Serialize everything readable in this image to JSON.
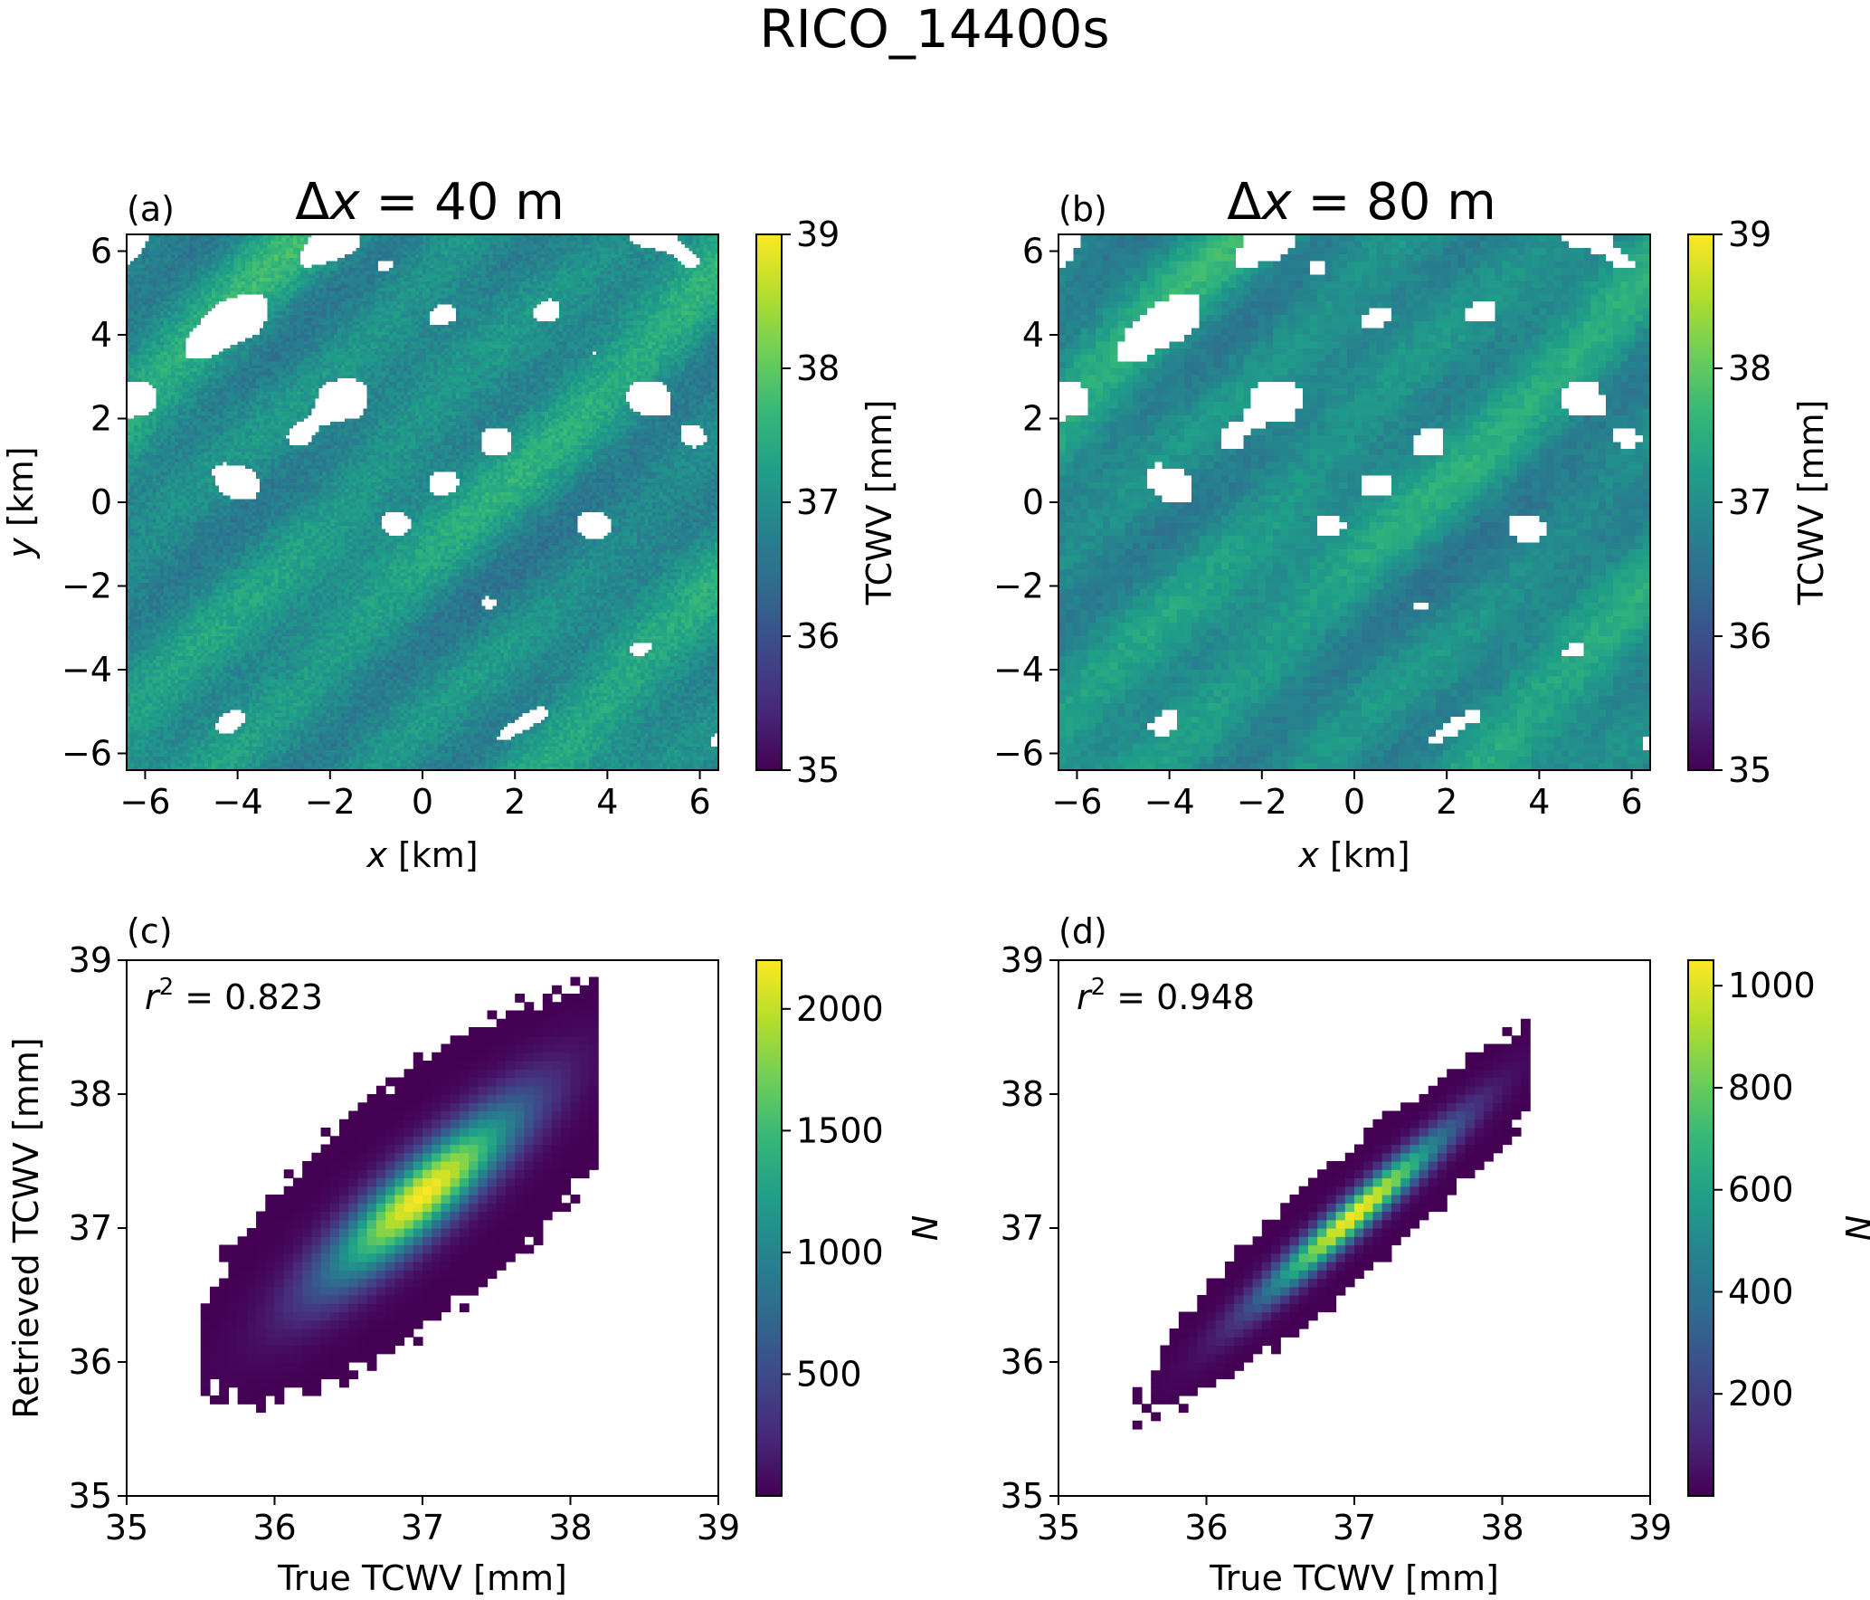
{
  "figure": {
    "title": "RICO_14400s"
  },
  "colormap": [
    "#440154",
    "#482878",
    "#3e4989",
    "#31688e",
    "#26828e",
    "#1f9e89",
    "#35b779",
    "#6ece58",
    "#b5de2b",
    "#fde725"
  ],
  "chart_data": [
    {
      "panel": "(a)",
      "type": "heatmap",
      "title": "Δx = 40 m",
      "title_parts": {
        "delta": "Δ",
        "var": "x",
        "rest": " = 40 m"
      },
      "xlabel": {
        "var": "x",
        "unit": " [km]"
      },
      "ylabel": {
        "var": "y",
        "unit": " [km]"
      },
      "xlim": [
        -6.4,
        6.4
      ],
      "ylim": [
        -6.4,
        6.4
      ],
      "xticks": [
        -6,
        -4,
        -2,
        0,
        2,
        4,
        6
      ],
      "yticks": [
        -6,
        -4,
        -2,
        0,
        2,
        4,
        6
      ],
      "colorbar": {
        "label": "TCWV [mm]",
        "range": [
          35,
          39
        ],
        "ticks": [
          35,
          36,
          37,
          38,
          39
        ]
      },
      "field_mean": 37.0,
      "cloud_mask_color": "#ffffff",
      "grid": false
    },
    {
      "panel": "(b)",
      "type": "heatmap",
      "title": "Δx = 80 m",
      "title_parts": {
        "delta": "Δ",
        "var": "x",
        "rest": " = 80 m"
      },
      "xlabel": {
        "var": "x",
        "unit": " [km]"
      },
      "ylabel": {
        "var": "",
        "unit": ""
      },
      "xlim": [
        -6.4,
        6.4
      ],
      "ylim": [
        -6.4,
        6.4
      ],
      "xticks": [
        -6,
        -4,
        -2,
        0,
        2,
        4,
        6
      ],
      "yticks": [
        -6,
        -4,
        -2,
        0,
        2,
        4,
        6
      ],
      "colorbar": {
        "label": "TCWV [mm]",
        "range": [
          35,
          39
        ],
        "ticks": [
          35,
          36,
          37,
          38,
          39
        ]
      },
      "field_mean": 37.0,
      "cloud_mask_color": "#ffffff",
      "grid": false
    },
    {
      "panel": "(c)",
      "type": "heatmap",
      "subtype": "2d-histogram",
      "annotation": {
        "var": "r",
        "sup": "2",
        "rest": " = 0.823"
      },
      "r2": 0.823,
      "xlabel": "True TCWV [mm]",
      "ylabel": "Retrieved TCWV [mm]",
      "xlim": [
        35,
        39
      ],
      "ylim": [
        35,
        39
      ],
      "xticks": [
        35,
        36,
        37,
        38,
        39
      ],
      "yticks": [
        35,
        36,
        37,
        38,
        39
      ],
      "true_range": [
        35.5,
        38.2
      ],
      "peak": [
        37.0,
        37.25
      ],
      "spread": {
        "along": 0.62,
        "across": 0.16
      },
      "colorbar": {
        "label": "N",
        "range": [
          0,
          2200
        ],
        "ticks": [
          500,
          1000,
          1500,
          2000
        ]
      },
      "max_count": 2200,
      "grid": false
    },
    {
      "panel": "(d)",
      "type": "heatmap",
      "subtype": "2d-histogram",
      "annotation": {
        "var": "r",
        "sup": "2",
        "rest": " = 0.948"
      },
      "r2": 0.948,
      "xlabel": "True TCWV [mm]",
      "ylabel": "",
      "xlim": [
        35,
        39
      ],
      "ylim": [
        35,
        39
      ],
      "xticks": [
        35,
        36,
        37,
        38,
        39
      ],
      "yticks": [
        35,
        36,
        37,
        38,
        39
      ],
      "true_range": [
        35.5,
        38.2
      ],
      "peak": [
        37.0,
        37.1
      ],
      "spread": {
        "along": 0.6,
        "across": 0.08
      },
      "colorbar": {
        "label": "N",
        "range": [
          0,
          1050
        ],
        "ticks": [
          200,
          400,
          600,
          800,
          1000
        ]
      },
      "max_count": 1050,
      "grid": false
    }
  ]
}
